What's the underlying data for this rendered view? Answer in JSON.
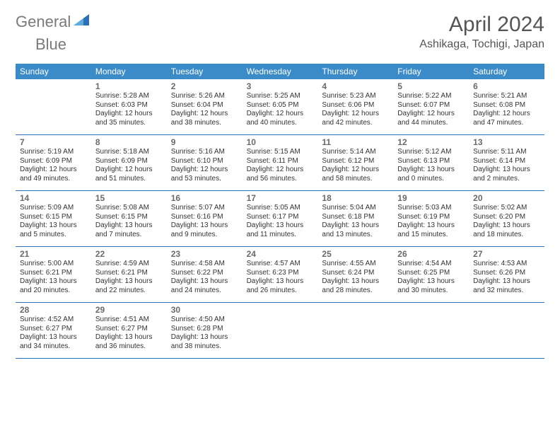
{
  "logo": {
    "word1": "General",
    "word2": "Blue"
  },
  "title": {
    "month": "April 2024",
    "location": "Ashikaga, Tochigi, Japan"
  },
  "colors": {
    "header_bg": "#3b8bc9",
    "header_text": "#ffffff",
    "week_border": "#2a72b5",
    "daynum": "#6a6a6a",
    "body_text": "#333333",
    "title_text": "#555555",
    "logo_gray": "#7a7a7a",
    "logo_blue": "#2a72b5"
  },
  "calendar": {
    "day_names": [
      "Sunday",
      "Monday",
      "Tuesday",
      "Wednesday",
      "Thursday",
      "Friday",
      "Saturday"
    ],
    "weeks": [
      [
        null,
        {
          "n": "1",
          "sr": "5:28 AM",
          "ss": "6:03 PM",
          "dl1": "Daylight: 12 hours",
          "dl2": "and 35 minutes."
        },
        {
          "n": "2",
          "sr": "5:26 AM",
          "ss": "6:04 PM",
          "dl1": "Daylight: 12 hours",
          "dl2": "and 38 minutes."
        },
        {
          "n": "3",
          "sr": "5:25 AM",
          "ss": "6:05 PM",
          "dl1": "Daylight: 12 hours",
          "dl2": "and 40 minutes."
        },
        {
          "n": "4",
          "sr": "5:23 AM",
          "ss": "6:06 PM",
          "dl1": "Daylight: 12 hours",
          "dl2": "and 42 minutes."
        },
        {
          "n": "5",
          "sr": "5:22 AM",
          "ss": "6:07 PM",
          "dl1": "Daylight: 12 hours",
          "dl2": "and 44 minutes."
        },
        {
          "n": "6",
          "sr": "5:21 AM",
          "ss": "6:08 PM",
          "dl1": "Daylight: 12 hours",
          "dl2": "and 47 minutes."
        }
      ],
      [
        {
          "n": "7",
          "sr": "5:19 AM",
          "ss": "6:09 PM",
          "dl1": "Daylight: 12 hours",
          "dl2": "and 49 minutes."
        },
        {
          "n": "8",
          "sr": "5:18 AM",
          "ss": "6:09 PM",
          "dl1": "Daylight: 12 hours",
          "dl2": "and 51 minutes."
        },
        {
          "n": "9",
          "sr": "5:16 AM",
          "ss": "6:10 PM",
          "dl1": "Daylight: 12 hours",
          "dl2": "and 53 minutes."
        },
        {
          "n": "10",
          "sr": "5:15 AM",
          "ss": "6:11 PM",
          "dl1": "Daylight: 12 hours",
          "dl2": "and 56 minutes."
        },
        {
          "n": "11",
          "sr": "5:14 AM",
          "ss": "6:12 PM",
          "dl1": "Daylight: 12 hours",
          "dl2": "and 58 minutes."
        },
        {
          "n": "12",
          "sr": "5:12 AM",
          "ss": "6:13 PM",
          "dl1": "Daylight: 13 hours",
          "dl2": "and 0 minutes."
        },
        {
          "n": "13",
          "sr": "5:11 AM",
          "ss": "6:14 PM",
          "dl1": "Daylight: 13 hours",
          "dl2": "and 2 minutes."
        }
      ],
      [
        {
          "n": "14",
          "sr": "5:09 AM",
          "ss": "6:15 PM",
          "dl1": "Daylight: 13 hours",
          "dl2": "and 5 minutes."
        },
        {
          "n": "15",
          "sr": "5:08 AM",
          "ss": "6:15 PM",
          "dl1": "Daylight: 13 hours",
          "dl2": "and 7 minutes."
        },
        {
          "n": "16",
          "sr": "5:07 AM",
          "ss": "6:16 PM",
          "dl1": "Daylight: 13 hours",
          "dl2": "and 9 minutes."
        },
        {
          "n": "17",
          "sr": "5:05 AM",
          "ss": "6:17 PM",
          "dl1": "Daylight: 13 hours",
          "dl2": "and 11 minutes."
        },
        {
          "n": "18",
          "sr": "5:04 AM",
          "ss": "6:18 PM",
          "dl1": "Daylight: 13 hours",
          "dl2": "and 13 minutes."
        },
        {
          "n": "19",
          "sr": "5:03 AM",
          "ss": "6:19 PM",
          "dl1": "Daylight: 13 hours",
          "dl2": "and 15 minutes."
        },
        {
          "n": "20",
          "sr": "5:02 AM",
          "ss": "6:20 PM",
          "dl1": "Daylight: 13 hours",
          "dl2": "and 18 minutes."
        }
      ],
      [
        {
          "n": "21",
          "sr": "5:00 AM",
          "ss": "6:21 PM",
          "dl1": "Daylight: 13 hours",
          "dl2": "and 20 minutes."
        },
        {
          "n": "22",
          "sr": "4:59 AM",
          "ss": "6:21 PM",
          "dl1": "Daylight: 13 hours",
          "dl2": "and 22 minutes."
        },
        {
          "n": "23",
          "sr": "4:58 AM",
          "ss": "6:22 PM",
          "dl1": "Daylight: 13 hours",
          "dl2": "and 24 minutes."
        },
        {
          "n": "24",
          "sr": "4:57 AM",
          "ss": "6:23 PM",
          "dl1": "Daylight: 13 hours",
          "dl2": "and 26 minutes."
        },
        {
          "n": "25",
          "sr": "4:55 AM",
          "ss": "6:24 PM",
          "dl1": "Daylight: 13 hours",
          "dl2": "and 28 minutes."
        },
        {
          "n": "26",
          "sr": "4:54 AM",
          "ss": "6:25 PM",
          "dl1": "Daylight: 13 hours",
          "dl2": "and 30 minutes."
        },
        {
          "n": "27",
          "sr": "4:53 AM",
          "ss": "6:26 PM",
          "dl1": "Daylight: 13 hours",
          "dl2": "and 32 minutes."
        }
      ],
      [
        {
          "n": "28",
          "sr": "4:52 AM",
          "ss": "6:27 PM",
          "dl1": "Daylight: 13 hours",
          "dl2": "and 34 minutes."
        },
        {
          "n": "29",
          "sr": "4:51 AM",
          "ss": "6:27 PM",
          "dl1": "Daylight: 13 hours",
          "dl2": "and 36 minutes."
        },
        {
          "n": "30",
          "sr": "4:50 AM",
          "ss": "6:28 PM",
          "dl1": "Daylight: 13 hours",
          "dl2": "and 38 minutes."
        },
        null,
        null,
        null,
        null
      ]
    ]
  },
  "labels": {
    "sunrise_prefix": "Sunrise: ",
    "sunset_prefix": "Sunset: "
  }
}
